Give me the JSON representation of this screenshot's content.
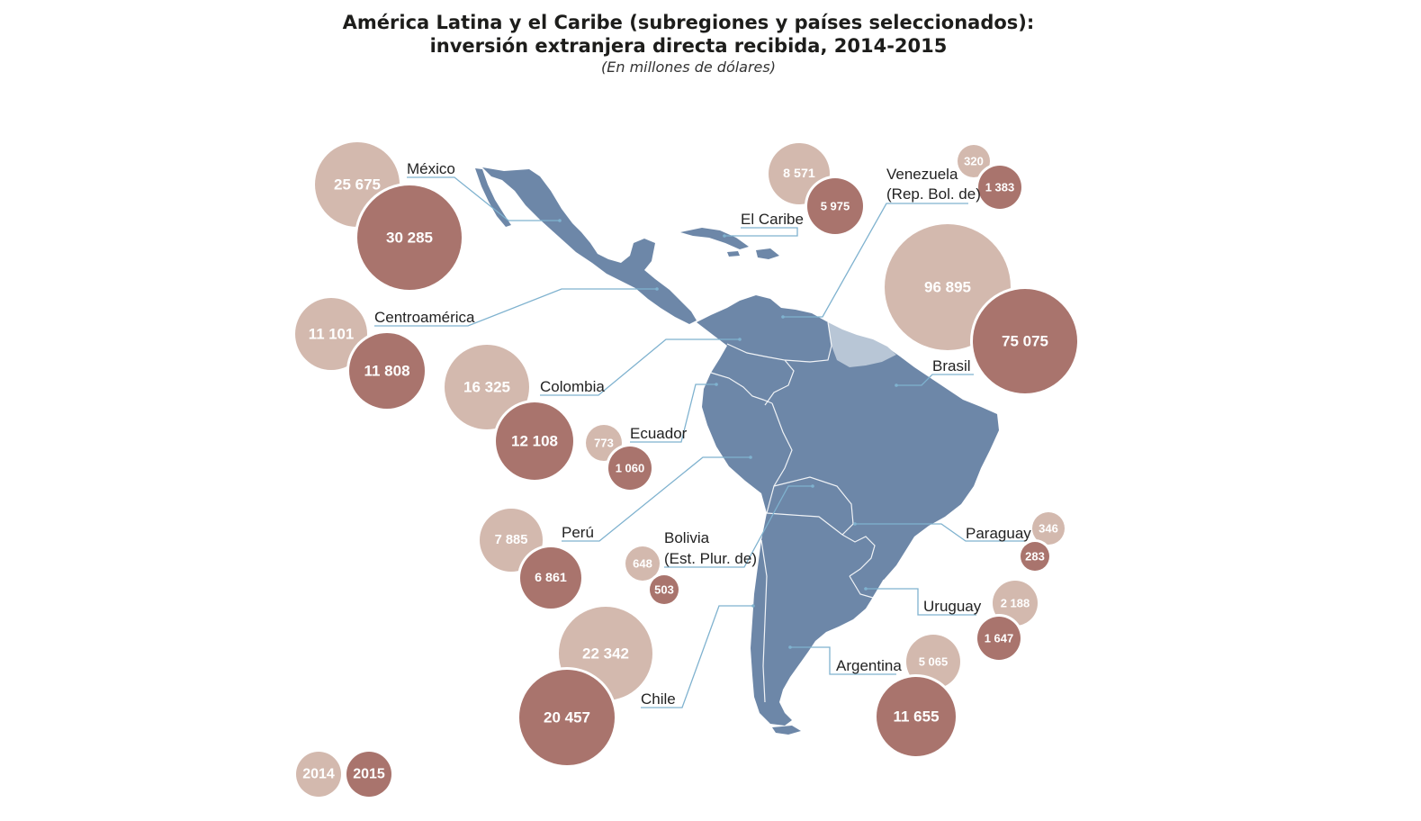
{
  "title_line1": "América Latina y el Caribe (subregiones y países seleccionados):",
  "title_line2": "inversión extranjera directa recibida, 2014-2015",
  "subtitle": "(En millones de dólares)",
  "legend": {
    "y2014": "2014",
    "y2015": "2015"
  },
  "colors": {
    "c2014": "#d3b9ae",
    "c2015": "#a9746d",
    "land": "#6d87a8",
    "guianas": "#b8c6d6",
    "line": "#7fb2cf"
  },
  "regions": [
    {
      "id": "mexico",
      "lines": [
        "México"
      ],
      "v2014": "25 675",
      "v2015": "30 285"
    },
    {
      "id": "centroamerica",
      "lines": [
        "Centroamérica"
      ],
      "v2014": "11 101",
      "v2015": "11 808"
    },
    {
      "id": "colombia",
      "lines": [
        "Colombia"
      ],
      "v2014": "16 325",
      "v2015": "12 108"
    },
    {
      "id": "ecuador",
      "lines": [
        "Ecuador"
      ],
      "v2014": "773",
      "v2015": "1 060"
    },
    {
      "id": "peru",
      "lines": [
        "Perú"
      ],
      "v2014": "7 885",
      "v2015": "6 861"
    },
    {
      "id": "bolivia",
      "lines": [
        "Bolivia",
        "(Est. Plur. de)"
      ],
      "v2014": "648",
      "v2015": "503"
    },
    {
      "id": "chile",
      "lines": [
        "Chile"
      ],
      "v2014": "22 342",
      "v2015": "20 457"
    },
    {
      "id": "caribe",
      "lines": [
        "El Caribe"
      ],
      "v2014": "8 571",
      "v2015": "5 975"
    },
    {
      "id": "venezuela",
      "lines": [
        "Venezuela",
        "(Rep. Bol. de)"
      ],
      "v2014": "320",
      "v2015": "1 383"
    },
    {
      "id": "brasil",
      "lines": [
        "Brasil"
      ],
      "v2014": "96 895",
      "v2015": "75 075"
    },
    {
      "id": "paraguay",
      "lines": [
        "Paraguay"
      ],
      "v2014": "346",
      "v2015": "283"
    },
    {
      "id": "uruguay",
      "lines": [
        "Uruguay"
      ],
      "v2014": "2 188",
      "v2015": "1 647"
    },
    {
      "id": "argentina",
      "lines": [
        "Argentina"
      ],
      "v2014": "5 065",
      "v2015": "11 655"
    }
  ]
}
